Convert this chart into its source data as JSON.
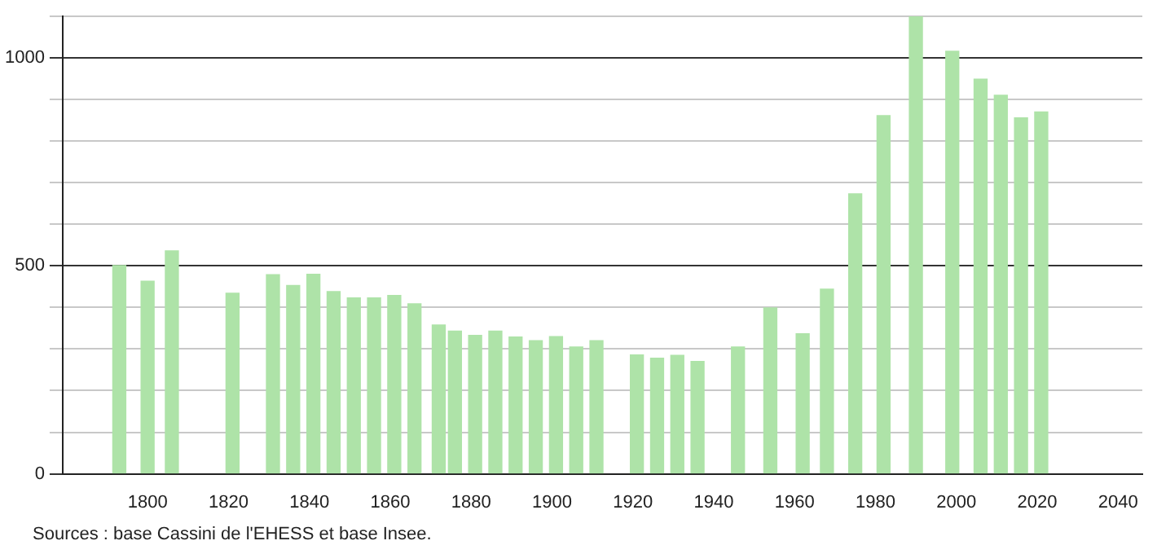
{
  "chart_data": {
    "type": "bar",
    "color": "#aee3a8",
    "x": [
      1793,
      1800,
      1806,
      1821,
      1831,
      1836,
      1841,
      1846,
      1851,
      1856,
      1861,
      1866,
      1872,
      1876,
      1881,
      1886,
      1891,
      1896,
      1901,
      1906,
      1911,
      1921,
      1926,
      1931,
      1936,
      1946,
      1954,
      1962,
      1968,
      1975,
      1982,
      1990,
      1999,
      2006,
      2011,
      2016,
      2021
    ],
    "values": [
      501,
      463,
      536,
      434,
      479,
      453,
      480,
      438,
      423,
      423,
      429,
      409,
      358,
      343,
      333,
      343,
      329,
      320,
      330,
      305,
      320,
      286,
      278,
      285,
      270,
      305,
      399,
      337,
      444,
      673,
      861,
      1100,
      1016,
      949,
      910,
      856,
      870
    ],
    "xlim": [
      1779,
      2046
    ],
    "xticks": [
      1800,
      1820,
      1840,
      1860,
      1880,
      1900,
      1920,
      1940,
      1960,
      1980,
      2000,
      2020,
      2040
    ],
    "ylim": [
      0,
      1100
    ],
    "yticks": [
      0,
      {
        "value": 100,
        "label": null
      },
      {
        "value": 200,
        "label": null
      },
      {
        "value": 300,
        "label": null
      },
      {
        "value": 400,
        "label": null
      },
      500,
      {
        "value": 600,
        "label": null
      },
      {
        "value": 700,
        "label": null
      },
      {
        "value": 800,
        "label": null
      },
      {
        "value": 900,
        "label": null
      },
      1000,
      {
        "value": 1100,
        "label": null
      }
    ],
    "grid": "y",
    "annotations": [
      "Sources : base Cassini de l'EHESS et base Insee."
    ]
  }
}
